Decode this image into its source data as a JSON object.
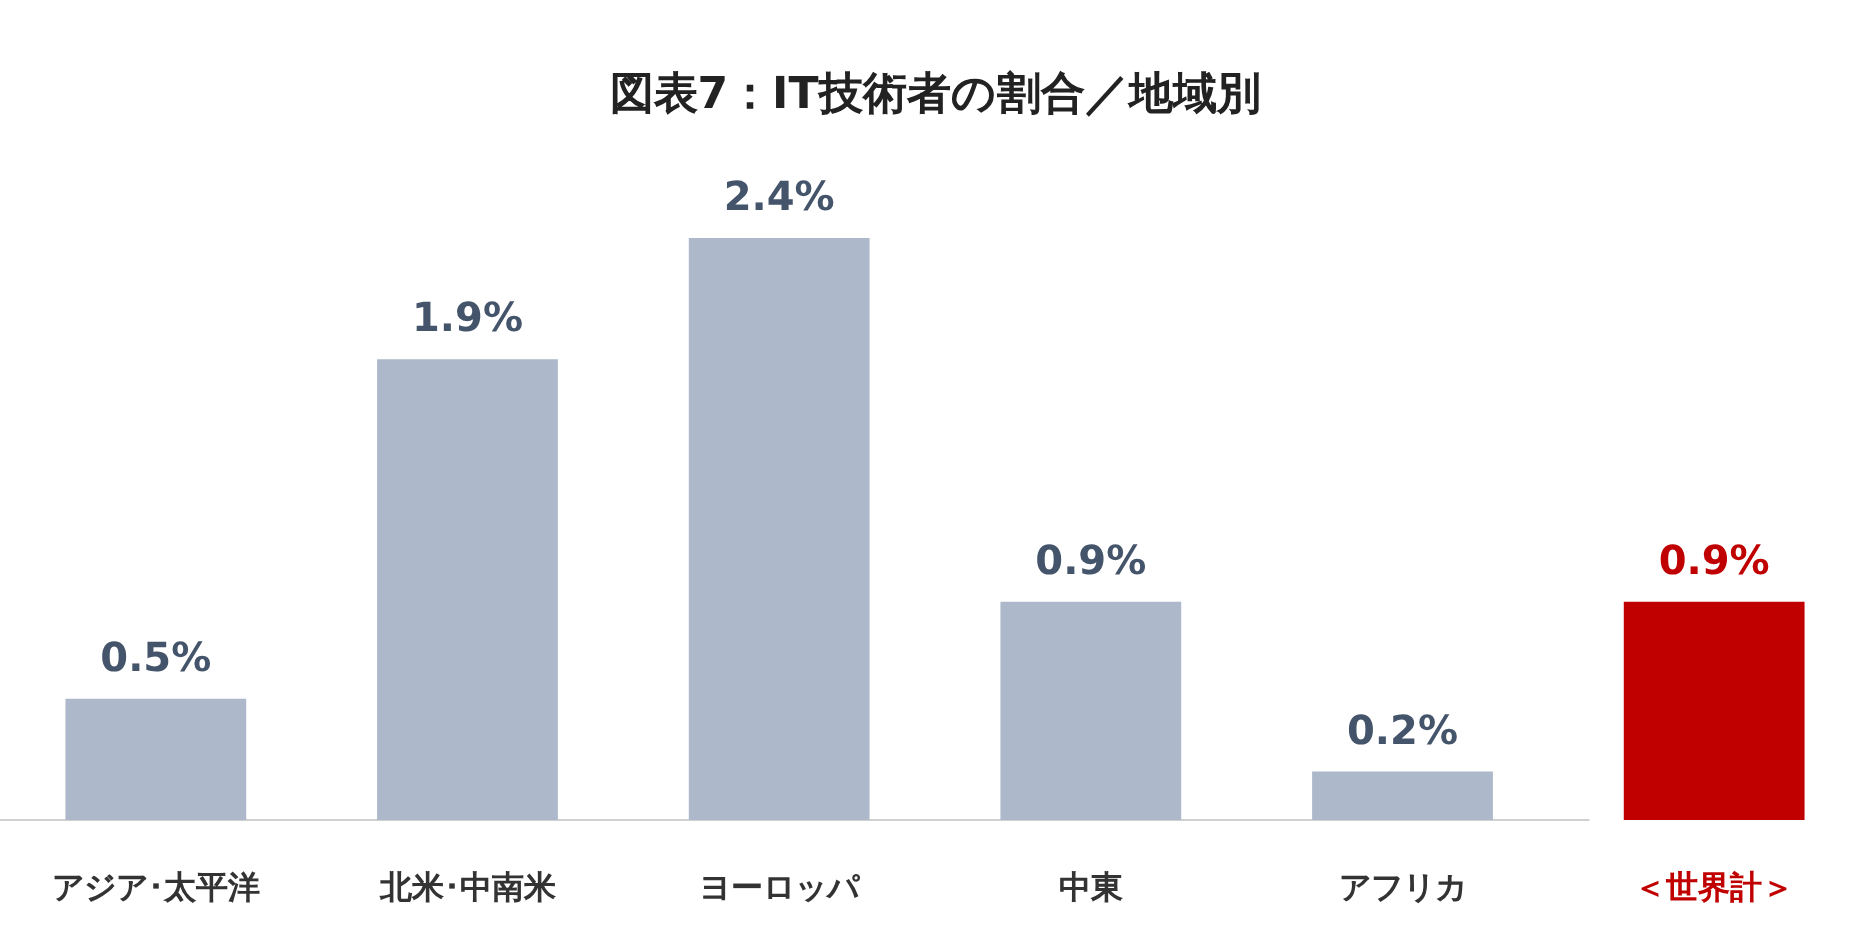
{
  "chart_data": {
    "type": "bar",
    "title": "図表7：IT技術者の割合／地域別",
    "categories": [
      "アジア･太平洋",
      "北米･中南米",
      "ヨーロッパ",
      "中東",
      "アフリカ",
      "＜世界計＞"
    ],
    "values": [
      0.5,
      1.9,
      2.4,
      0.9,
      0.2,
      0.9
    ],
    "colors": [
      "#adb9ca",
      "#adb9ca",
      "#adb9ca",
      "#adb9ca",
      "#adb9ca",
      "#c00000"
    ],
    "value_labels": [
      "0.5%",
      "1.9%",
      "2.4%",
      "0.9%",
      "0.2%",
      "0.9%"
    ]
  }
}
